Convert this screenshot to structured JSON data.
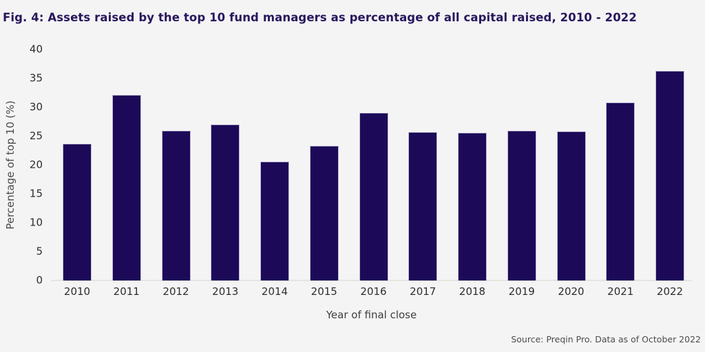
{
  "figure": {
    "title": "Fig. 4: Assets raised by the top 10 fund managers as percentage of all capital raised, 2010 - 2022",
    "source": "Source: Preqin Pro. Data as of October 2022"
  },
  "chart_data": {
    "type": "bar",
    "title": "Fig. 4: Assets raised by the top 10 fund managers as percentage of all capital raised, 2010 - 2022",
    "categories": [
      "2010",
      "2011",
      "2012",
      "2013",
      "2014",
      "2015",
      "2016",
      "2017",
      "2018",
      "2019",
      "2020",
      "2021",
      "2022"
    ],
    "values": [
      23.7,
      32.1,
      25.9,
      27.0,
      20.6,
      23.3,
      29.1,
      25.7,
      25.6,
      26.0,
      25.8,
      30.8,
      36.3
    ],
    "xlabel": "Year of final close",
    "ylabel": "Percentage of top 10 (%)",
    "ylim": [
      0,
      40
    ],
    "yticks": [
      0,
      5,
      10,
      15,
      20,
      25,
      30,
      35,
      40
    ],
    "grid": false,
    "legend": "none",
    "colors": {
      "background": "#f4f4f5",
      "bar_fill": "#1c0a58",
      "bar_border": "#c3bbd6",
      "title_text": "#29175d",
      "axis_text": "#2d2d2d",
      "axis_line": "#e8e4df"
    }
  }
}
